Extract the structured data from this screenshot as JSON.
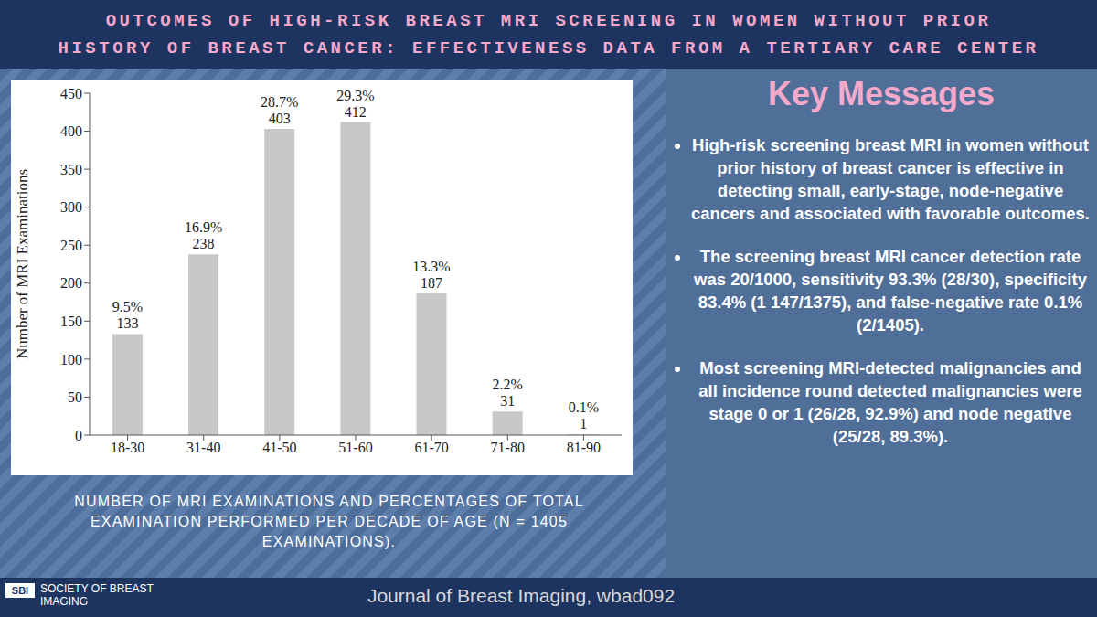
{
  "header": {
    "title_lines": [
      "OUTCOMES OF HIGH-RISK BREAST MRI SCREENING IN WOMEN WITHOUT PRIOR",
      "HISTORY OF BREAST CANCER: EFFECTIVENESS DATA FROM A TERTIARY CARE CENTER"
    ]
  },
  "chart_data": {
    "type": "bar",
    "categories": [
      "18-30",
      "31-40",
      "41-50",
      "51-60",
      "61-70",
      "71-80",
      "81-90"
    ],
    "values": [
      133,
      238,
      403,
      412,
      187,
      31,
      1
    ],
    "percent_labels": [
      "9.5%",
      "16.9%",
      "28.7%",
      "29.3%",
      "13.3%",
      "2.2%",
      "0.1%"
    ],
    "color": "#c8c8c8",
    "ylim": [
      0,
      450
    ],
    "yticks": [
      0,
      50,
      100,
      150,
      200,
      250,
      300,
      350,
      400,
      450
    ],
    "ylabel": "Number of MRI Examinations",
    "grid": false,
    "data_labels": true
  },
  "caption": "NUMBER OF MRI EXAMINATIONS AND PERCENTAGES OF TOTAL EXAMINATION PERFORMED PER DECADE OF AGE (N = 1405 EXAMINATIONS).",
  "key_messages": {
    "title": "Key Messages",
    "items": [
      "High-risk screening breast MRI in women without prior history of breast cancer is effective in detecting small, early-stage, node-negative cancers and associated with favorable outcomes.",
      "The screening breast MRI cancer detection rate was 20/1000, sensitivity 93.3% (28/30), specificity 83.4% (1 147/1375), and false-negative rate 0.1% (2/1405).",
      "Most screening MRI-detected malignancies and all incidence round detected malignancies were stage 0 or 1 (26/28, 92.9%) and node negative (25/28, 89.3%)."
    ]
  },
  "footer": {
    "logo": "SBI",
    "society": "SOCIETY OF BREAST IMAGING",
    "journal": "Journal of Breast Imaging, wbad092"
  }
}
